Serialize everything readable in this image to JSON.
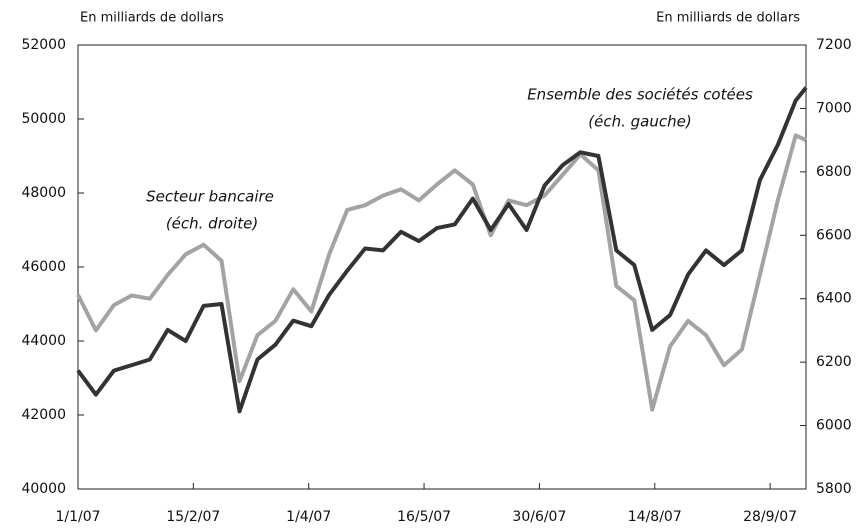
{
  "chart_data": {
    "type": "line",
    "y_label": "En milliards de dollars",
    "y2_label": "En milliards de dollars",
    "annotations": [
      "Secteur bancaire",
      "(éch. droite)",
      "Ensemble des sociétés cotées",
      "(éch. gauche)"
    ],
    "x": [
      "1/1/07",
      "8/1/07",
      "15/1/07",
      "22/1/07",
      "29/1/07",
      "5/2/07",
      "12/2/07",
      "19/2/07",
      "26/2/07",
      "5/3/07",
      "12/3/07",
      "19/3/07",
      "26/3/07",
      "2/4/07",
      "9/4/07",
      "16/4/07",
      "23/4/07",
      "30/4/07",
      "7/5/07",
      "14/5/07",
      "21/5/07",
      "28/5/07",
      "4/6/07",
      "11/6/07",
      "18/6/07",
      "25/6/07",
      "2/7/07",
      "9/7/07",
      "16/7/07",
      "23/7/07",
      "30/7/07",
      "6/8/07",
      "13/8/07",
      "20/8/07",
      "27/8/07",
      "3/9/07",
      "10/9/07",
      "17/9/07",
      "24/9/07",
      "1/10/07",
      "8/10/07",
      "12/10/07"
    ],
    "xlim": [
      "1/1/07",
      "12/10/07"
    ],
    "xticks": [
      "1/1/07",
      "15/2/07",
      "1/4/07",
      "16/5/07",
      "30/6/07",
      "14/8/07",
      "28/9/07"
    ],
    "ylim": [
      40000,
      52000
    ],
    "yticks": [
      40000,
      42000,
      44000,
      46000,
      48000,
      50000,
      52000
    ],
    "y2lim": [
      5800,
      7200
    ],
    "y2ticks": [
      5800,
      6000,
      6200,
      6400,
      6600,
      6800,
      7000,
      7200
    ],
    "series": [
      {
        "color": "#333333",
        "axis": "y",
        "values": [
          43200,
          42550,
          43200,
          43350,
          43500,
          44300,
          44000,
          44950,
          45000,
          42100,
          43500,
          43900,
          44550,
          44400,
          45250,
          45900,
          46500,
          46450,
          46950,
          46700,
          47050,
          47150,
          47850,
          47000,
          47700,
          47000,
          48200,
          48750,
          49100,
          49000,
          46450,
          46050,
          44300,
          44700,
          45800,
          46450,
          46050,
          46450,
          48350,
          49300,
          50500,
          50850
        ]
      },
      {
        "color": "#a3a3a3",
        "axis": "y2",
        "values": [
          6412,
          6300,
          6380,
          6410,
          6400,
          6475,
          6540,
          6570,
          6520,
          6140,
          6285,
          6330,
          6430,
          6360,
          6540,
          6680,
          6695,
          6725,
          6745,
          6710,
          6760,
          6805,
          6760,
          6600,
          6710,
          6695,
          6725,
          6790,
          6855,
          6805,
          6440,
          6395,
          6050,
          6250,
          6330,
          6285,
          6190,
          6240,
          6475,
          6710,
          6915,
          6900
        ]
      }
    ]
  }
}
